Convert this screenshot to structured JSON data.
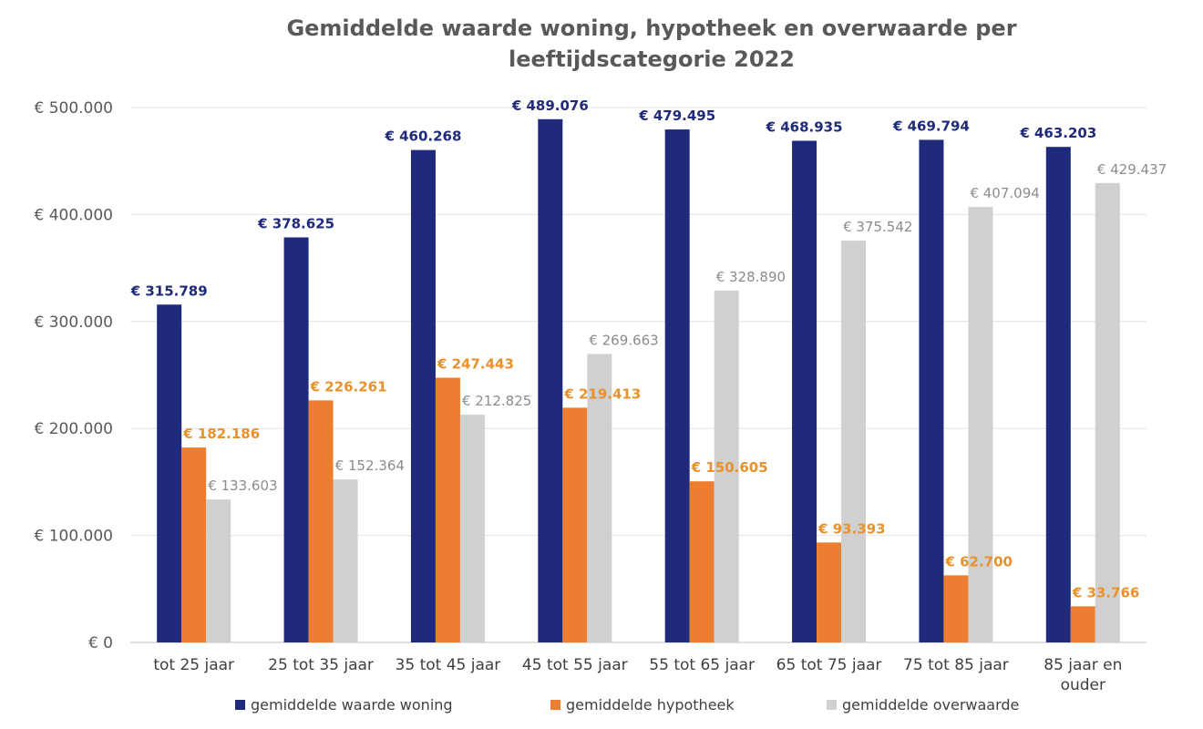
{
  "chart_data": {
    "type": "bar",
    "title_lines": [
      "Gemiddelde waarde woning, hypotheek en overwaarde per",
      "leeftijdscategorie 2022"
    ],
    "categories": [
      [
        "tot 25 jaar"
      ],
      [
        "25 tot 35 jaar"
      ],
      [
        "35 tot 45 jaar"
      ],
      [
        "45 tot 55 jaar"
      ],
      [
        "55 tot 65 jaar"
      ],
      [
        "65 tot 75 jaar"
      ],
      [
        "75 tot 85 jaar"
      ],
      [
        "85 jaar en",
        "ouder"
      ]
    ],
    "series": [
      {
        "name": "gemiddelde waarde woning",
        "color": "#1f2a7a",
        "label_color": "#1f2a7a",
        "label_bold": true,
        "values": [
          315789,
          378625,
          460268,
          489076,
          479495,
          468935,
          469794,
          463203
        ],
        "labels": [
          "€ 315.789",
          "€ 378.625",
          "€ 460.268",
          "€ 489.076",
          "€ 479.495",
          "€ 468.935",
          "€ 469.794",
          "€ 463.203"
        ]
      },
      {
        "name": "gemiddelde hypotheek",
        "color": "#ed7d31",
        "label_color": "#e8912d",
        "label_bold": true,
        "values": [
          182186,
          226261,
          247443,
          219413,
          150605,
          93393,
          62700,
          33766
        ],
        "labels": [
          "€ 182.186",
          "€ 226.261",
          "€ 247.443",
          "€ 219.413",
          "€ 150.605",
          "€ 93.393",
          "€ 62.700",
          "€ 33.766"
        ]
      },
      {
        "name": "gemiddelde overwaarde",
        "color": "#d0d0d0",
        "label_color": "#8c8c8c",
        "label_bold": false,
        "values": [
          133603,
          152364,
          212825,
          269663,
          328890,
          375542,
          407094,
          429437
        ],
        "labels": [
          "€ 133.603",
          "€ 152.364",
          "€ 212.825",
          "€ 269.663",
          "€ 328.890",
          "€ 375.542",
          "€ 407.094",
          "€ 429.437"
        ]
      }
    ],
    "ylim": [
      0,
      500000
    ],
    "yticks": [
      0,
      100000,
      200000,
      300000,
      400000,
      500000
    ],
    "ytick_labels": [
      "€ 0",
      "€ 100.000",
      "€ 200.000",
      "€ 300.000",
      "€ 400.000",
      "€ 500.000"
    ],
    "grid": true,
    "legend_position": "bottom"
  }
}
